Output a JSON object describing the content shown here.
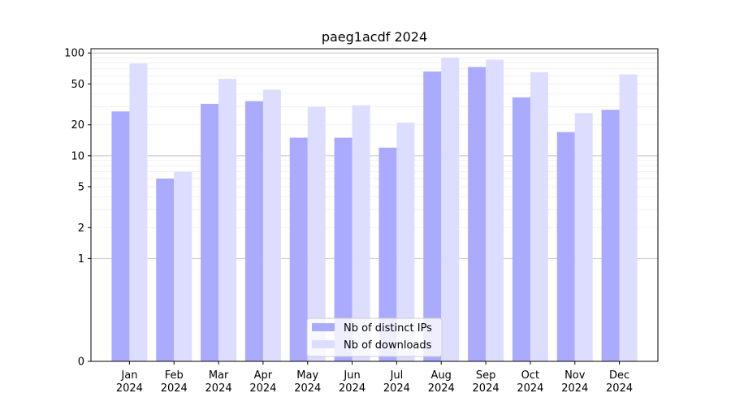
{
  "chart_data": {
    "type": "bar",
    "title": "paeg1acdf 2024",
    "xlabel": "",
    "ylabel": "",
    "yscale": "symlog",
    "ylim": [
      0,
      110
    ],
    "yticks": [
      0,
      1,
      2,
      5,
      10,
      20,
      50,
      100
    ],
    "ytick_labels": [
      "0",
      "1",
      "2",
      "5",
      "10",
      "20",
      "50",
      "100"
    ],
    "categories": [
      "Jan",
      "Feb",
      "Mar",
      "Apr",
      "May",
      "Jun",
      "Jul",
      "Aug",
      "Sep",
      "Oct",
      "Nov",
      "Dec"
    ],
    "category_years": [
      "2024",
      "2024",
      "2024",
      "2024",
      "2024",
      "2024",
      "2024",
      "2024",
      "2024",
      "2024",
      "2024",
      "2024"
    ],
    "series": [
      {
        "name": "Nb of distinct IPs",
        "color": "#aaaaff",
        "values": [
          27,
          6,
          32,
          34,
          15,
          15,
          12,
          66,
          73,
          37,
          17,
          28
        ]
      },
      {
        "name": "Nb of downloads",
        "color": "#ddddff",
        "values": [
          79,
          7,
          56,
          44,
          30,
          31,
          21,
          90,
          86,
          65,
          26,
          62
        ]
      }
    ],
    "grid": true,
    "legend_position": "bottom-center"
  }
}
